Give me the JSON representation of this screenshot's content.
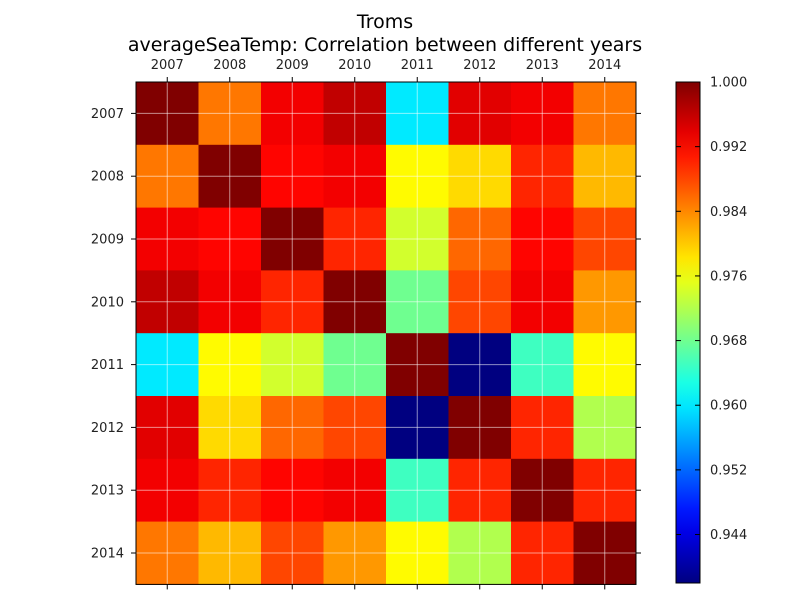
{
  "chart_data": {
    "type": "heatmap",
    "title": "Troms",
    "subtitle": "averageSeaTemp: Correlation between different years",
    "x_categories": [
      "2007",
      "2008",
      "2009",
      "2010",
      "2011",
      "2012",
      "2013",
      "2014"
    ],
    "y_categories": [
      "2007",
      "2008",
      "2009",
      "2010",
      "2011",
      "2012",
      "2013",
      "2014"
    ],
    "values": [
      [
        1.0,
        0.985,
        0.993,
        0.996,
        0.96,
        0.994,
        0.993,
        0.985
      ],
      [
        0.985,
        1.0,
        0.992,
        0.993,
        0.977,
        0.979,
        0.99,
        0.981
      ],
      [
        0.993,
        0.992,
        1.0,
        0.99,
        0.974,
        0.986,
        0.992,
        0.988
      ],
      [
        0.996,
        0.993,
        0.99,
        1.0,
        0.968,
        0.988,
        0.993,
        0.983
      ],
      [
        0.96,
        0.977,
        0.974,
        0.968,
        1.0,
        0.938,
        0.965,
        0.977
      ],
      [
        0.994,
        0.979,
        0.986,
        0.988,
        0.938,
        1.0,
        0.99,
        0.972
      ],
      [
        0.993,
        0.99,
        0.992,
        0.993,
        0.965,
        0.99,
        1.0,
        0.99
      ],
      [
        0.985,
        0.981,
        0.988,
        0.983,
        0.977,
        0.972,
        0.99,
        1.0
      ]
    ],
    "colormap": "jet",
    "color_range": [
      0.938,
      1.0
    ],
    "colorbar_ticks": [
      "1.000",
      "0.992",
      "0.984",
      "0.976",
      "0.968",
      "0.960",
      "0.952",
      "0.944"
    ],
    "grid": true
  }
}
